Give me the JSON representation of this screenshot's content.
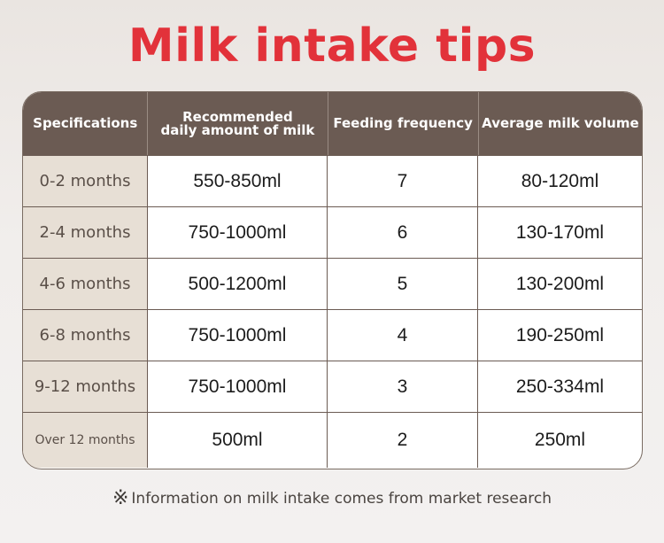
{
  "title": "Milk intake tips",
  "headers": [
    "Specifications",
    "Recommended\ndaily amount of milk",
    "Feeding frequency",
    "Average milk volume"
  ],
  "rows": [
    {
      "age": "0-2 months",
      "amount": "550-850ml",
      "frequency": "7",
      "volume": "80-120ml"
    },
    {
      "age": "2-4 months",
      "amount": "750-1000ml",
      "frequency": "6",
      "volume": "130-170ml"
    },
    {
      "age": "4-6 months",
      "amount": "500-1200ml",
      "frequency": "5",
      "volume": "130-200ml"
    },
    {
      "age": "6-8 months",
      "amount": "750-1000ml",
      "frequency": "4",
      "volume": "190-250ml"
    },
    {
      "age": "9-12 months",
      "amount": "750-1000ml",
      "frequency": "3",
      "volume": "250-334ml"
    },
    {
      "age": "Over 12 months",
      "amount": "500ml",
      "frequency": "2",
      "volume": "250ml"
    }
  ],
  "note": {
    "mark": "※",
    "text": "Information on milk intake comes from market research"
  },
  "colors": {
    "title": "#e2323a",
    "header_bg": "#6b5b53",
    "label_bg": "#e7dfd5"
  }
}
